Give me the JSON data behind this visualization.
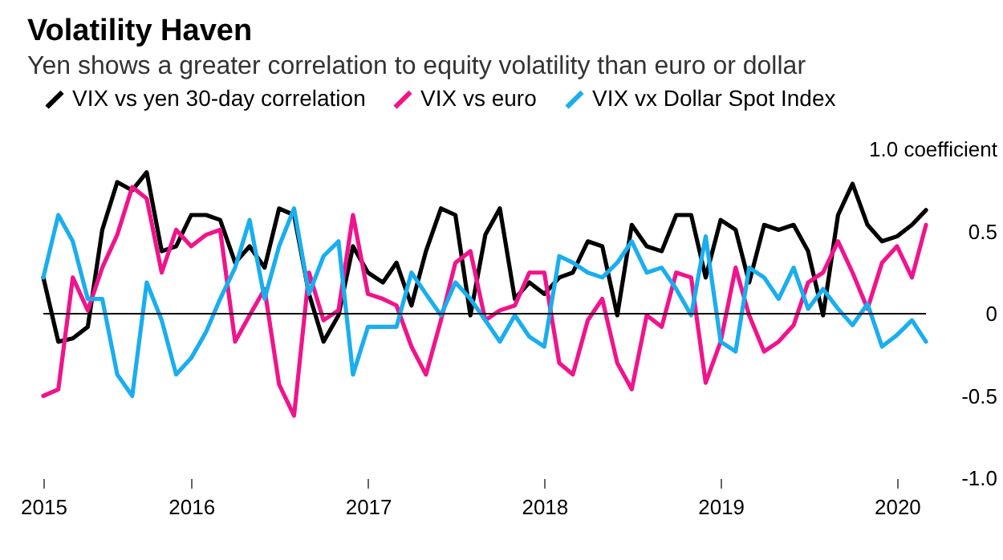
{
  "chart_data": {
    "type": "line",
    "title": "Volatility Haven",
    "subtitle": "Yen shows a greater correlation to equity volatility than euro or dollar",
    "x": [
      "2015-03",
      "2015-04",
      "2015-05",
      "2015-06",
      "2015-07",
      "2015-08",
      "2015-09",
      "2015-10",
      "2015-11",
      "2015-12",
      "2016-01",
      "2016-02",
      "2016-03",
      "2016-04",
      "2016-05",
      "2016-06",
      "2016-07",
      "2016-08",
      "2016-09",
      "2016-10",
      "2016-11",
      "2016-12",
      "2017-01",
      "2017-02",
      "2017-03",
      "2017-04",
      "2017-05",
      "2017-06",
      "2017-07",
      "2017-08",
      "2017-09",
      "2017-10",
      "2017-11",
      "2017-12",
      "2018-01",
      "2018-02",
      "2018-03",
      "2018-04",
      "2018-05",
      "2018-06",
      "2018-07",
      "2018-08",
      "2018-09",
      "2018-10",
      "2018-11",
      "2018-12",
      "2019-01",
      "2019-02",
      "2019-03",
      "2019-04",
      "2019-05",
      "2019-06",
      "2019-07",
      "2019-08",
      "2019-09",
      "2019-10",
      "2019-11",
      "2019-12",
      "2020-01",
      "2020-02",
      "2020-03"
    ],
    "series": [
      {
        "name": "VIX vs yen 30-day correlation",
        "color": "#000000",
        "values": [
          0.22,
          -0.17,
          -0.15,
          -0.08,
          0.51,
          0.8,
          0.75,
          0.86,
          0.38,
          0.41,
          0.6,
          0.6,
          0.57,
          0.31,
          0.41,
          0.28,
          0.64,
          0.6,
          0.12,
          -0.17,
          -0.01,
          0.41,
          0.25,
          0.19,
          0.31,
          0.05,
          0.38,
          0.64,
          0.6,
          -0.01,
          0.48,
          0.64,
          0.09,
          0.19,
          0.12,
          0.22,
          0.25,
          0.44,
          0.41,
          -0.01,
          0.54,
          0.41,
          0.38,
          0.6,
          0.6,
          0.22,
          0.57,
          0.51,
          0.19,
          0.54,
          0.51,
          0.54,
          0.38,
          -0.01,
          0.6,
          0.79,
          0.54,
          0.44,
          0.47,
          0.54,
          0.63
        ]
      },
      {
        "name": "VIX vs euro",
        "color": "#f0148c",
        "values": [
          -0.5,
          -0.46,
          0.22,
          0.02,
          0.28,
          0.48,
          0.77,
          0.7,
          0.25,
          0.51,
          0.41,
          0.48,
          0.51,
          -0.17,
          -0.01,
          0.15,
          -0.43,
          -0.62,
          0.25,
          -0.04,
          0.02,
          0.6,
          0.12,
          0.09,
          0.05,
          -0.2,
          -0.37,
          -0.04,
          0.31,
          0.38,
          -0.04,
          0.02,
          0.05,
          0.25,
          0.25,
          -0.3,
          -0.37,
          -0.04,
          0.09,
          -0.3,
          -0.46,
          -0.01,
          -0.08,
          0.25,
          0.22,
          -0.42,
          -0.17,
          0.28,
          -0.01,
          -0.23,
          -0.17,
          -0.07,
          0.19,
          0.25,
          0.44,
          0.25,
          0.03,
          0.31,
          0.41,
          0.22,
          0.54
        ]
      },
      {
        "name": "VIX vx Dollar Spot Index",
        "color": "#1aaeee",
        "values": [
          0.22,
          0.6,
          0.44,
          0.09,
          0.09,
          -0.37,
          -0.5,
          0.19,
          -0.04,
          -0.37,
          -0.27,
          -0.11,
          0.09,
          0.28,
          0.57,
          0.09,
          0.41,
          0.64,
          0.12,
          0.35,
          0.44,
          -0.37,
          -0.08,
          -0.08,
          -0.08,
          0.25,
          0.12,
          -0.01,
          0.19,
          0.09,
          -0.04,
          -0.17,
          -0.01,
          -0.14,
          -0.2,
          0.35,
          0.31,
          0.25,
          0.22,
          0.31,
          0.44,
          0.25,
          0.28,
          0.15,
          -0.01,
          0.47,
          -0.17,
          -0.23,
          0.28,
          0.22,
          0.09,
          0.28,
          0.03,
          0.15,
          0.03,
          -0.07,
          0.06,
          -0.2,
          -0.13,
          -0.04,
          -0.17
        ]
      }
    ],
    "xlim": [
      "2015-03",
      "2020-03"
    ],
    "xticks": [
      {
        "value": "2015-03",
        "label": "2015"
      },
      "2016",
      "2017",
      "2018",
      "2019",
      "2020"
    ],
    "ylim": [
      -1,
      1
    ],
    "yticks": [
      {
        "value": 1,
        "label": "1.0 coefficient"
      },
      0.5,
      0,
      -0.5,
      {
        "value": -1,
        "label": "-1.0"
      }
    ],
    "ref_lines": [
      {
        "axis": "y",
        "value": 0,
        "color": "#000000"
      }
    ],
    "legend": "top left"
  }
}
